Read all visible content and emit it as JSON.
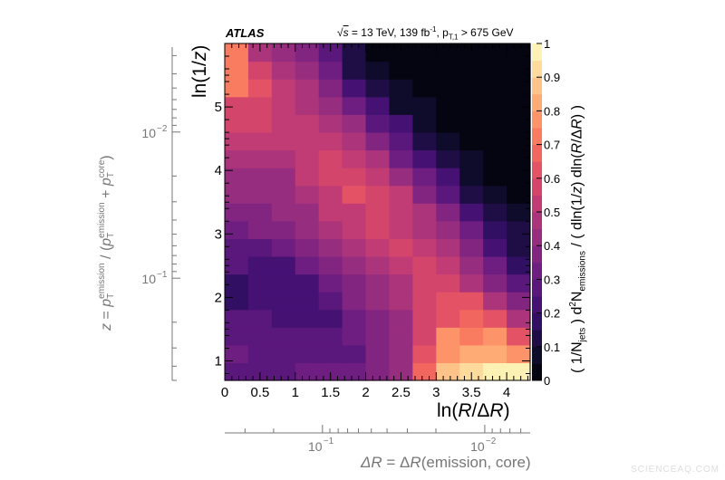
{
  "chart_data": {
    "type": "heatmap",
    "experiment_label": "ATLAS",
    "subtitle": {
      "sqrt": "√",
      "s": "s",
      "rest": " = 13 TeV, 139 fb",
      "fb_exp": "-1",
      "pt_sep": ", p",
      "pt_sub": "T,1",
      "cut": " > 675 GeV"
    },
    "xlabel": {
      "pre": "ln(",
      "R": "R",
      "slash": "/Δ",
      "R2": "R",
      "post": ")"
    },
    "ylabel": {
      "pre": "ln(1/",
      "z": "z",
      "post": ")"
    },
    "secondary_xlabel": {
      "d1": "Δ",
      "R1": "R",
      "mid": " = Δ",
      "R2": "R",
      "post": "(emission, core)"
    },
    "secondary_ylabel": {
      "z": "z",
      "eq": " = ",
      "p1": "p",
      "s1": "T",
      "e1": "emission",
      "div": " / (",
      "p2": "p",
      "s2": "T",
      "e2": "emission",
      "plus": " + ",
      "p3": "p",
      "s3": "T",
      "e3": "core",
      "close": ")"
    },
    "zlabel": {
      "open": "( 1/N",
      "jets": "jets",
      "mid": " ) d",
      "two": "2",
      "N": "N",
      "em": "emissions",
      "rest": " / ( dln(1/",
      "z": "z",
      "r2": ") dln(",
      "R": "R",
      "r3": "/Δ",
      "R2": "R",
      "r4": ") )"
    },
    "xlim": [
      0,
      4.333
    ],
    "ylim": [
      0.693,
      6.0
    ],
    "zlim": [
      0,
      1
    ],
    "x_bin_edges_step": 0.3333,
    "x_ticks": [
      "0",
      "0.5",
      "1",
      "1.5",
      "2",
      "2.5",
      "3",
      "3.5",
      "4"
    ],
    "y_ticks": [
      "1",
      "2",
      "3",
      "4",
      "5"
    ],
    "z_ticks": [
      "0",
      "0.1",
      "0.2",
      "0.3",
      "0.4",
      "0.5",
      "0.6",
      "0.7",
      "0.8",
      "0.9",
      "1"
    ],
    "secondary_x_ticks": [
      {
        "label": "10",
        "exp": "−1",
        "value": 0.1
      },
      {
        "label": "10",
        "exp": "−2",
        "value": 0.01
      }
    ],
    "secondary_y_ticks": [
      {
        "label": "10",
        "exp": "−1",
        "value": 0.1
      },
      {
        "label": "10",
        "exp": "−2",
        "value": 0.01
      }
    ],
    "jet_radius_R": 0.4,
    "colormap": "magma",
    "rows_from_bottom": [
      [
        0.25,
        0.25,
        0.25,
        0.3,
        0.3,
        0.32,
        0.38,
        0.42,
        0.65,
        0.85,
        0.9,
        0.95,
        0.95
      ],
      [
        0.3,
        0.25,
        0.25,
        0.25,
        0.25,
        0.28,
        0.35,
        0.42,
        0.6,
        0.78,
        0.8,
        0.82,
        0.78
      ],
      [
        0.25,
        0.25,
        0.25,
        0.25,
        0.25,
        0.3,
        0.35,
        0.42,
        0.55,
        0.75,
        0.72,
        0.75,
        0.6
      ],
      [
        0.25,
        0.25,
        0.22,
        0.22,
        0.22,
        0.3,
        0.35,
        0.42,
        0.58,
        0.62,
        0.65,
        0.6,
        0.45
      ],
      [
        0.18,
        0.22,
        0.22,
        0.22,
        0.28,
        0.35,
        0.4,
        0.45,
        0.55,
        0.6,
        0.62,
        0.48,
        0.38
      ],
      [
        0.18,
        0.22,
        0.22,
        0.22,
        0.3,
        0.38,
        0.42,
        0.48,
        0.55,
        0.55,
        0.48,
        0.38,
        0.25
      ],
      [
        0.25,
        0.22,
        0.22,
        0.3,
        0.35,
        0.4,
        0.45,
        0.52,
        0.55,
        0.5,
        0.42,
        0.3,
        0.18
      ],
      [
        0.25,
        0.25,
        0.3,
        0.35,
        0.4,
        0.45,
        0.5,
        0.55,
        0.5,
        0.45,
        0.35,
        0.2,
        0.12
      ],
      [
        0.3,
        0.35,
        0.35,
        0.4,
        0.45,
        0.5,
        0.55,
        0.52,
        0.45,
        0.4,
        0.3,
        0.18,
        0.1
      ],
      [
        0.35,
        0.38,
        0.4,
        0.42,
        0.5,
        0.52,
        0.55,
        0.5,
        0.45,
        0.35,
        0.2,
        0.1,
        0.08
      ],
      [
        0.4,
        0.4,
        0.42,
        0.45,
        0.52,
        0.6,
        0.55,
        0.5,
        0.38,
        0.25,
        0.12,
        0.08,
        0.01
      ],
      [
        0.42,
        0.42,
        0.42,
        0.5,
        0.55,
        0.58,
        0.5,
        0.42,
        0.3,
        0.2,
        0.08,
        0.03,
        0.0
      ],
      [
        0.45,
        0.45,
        0.45,
        0.5,
        0.58,
        0.5,
        0.45,
        0.3,
        0.2,
        0.1,
        0.05,
        0.01,
        0.0
      ],
      [
        0.5,
        0.5,
        0.5,
        0.5,
        0.5,
        0.45,
        0.38,
        0.25,
        0.12,
        0.08,
        0.02,
        0.0,
        0.0
      ],
      [
        0.58,
        0.55,
        0.5,
        0.5,
        0.45,
        0.4,
        0.25,
        0.2,
        0.06,
        0.02,
        0.0,
        0.0,
        0.0
      ],
      [
        0.58,
        0.55,
        0.5,
        0.48,
        0.4,
        0.3,
        0.2,
        0.07,
        0.05,
        0.0,
        0.0,
        0.0,
        0.0
      ],
      [
        0.7,
        0.6,
        0.5,
        0.45,
        0.35,
        0.22,
        0.12,
        0.06,
        0.02,
        0.0,
        0.0,
        0.0,
        0.0
      ],
      [
        0.7,
        0.55,
        0.45,
        0.4,
        0.3,
        0.12,
        0.08,
        0.02,
        0.0,
        0.0,
        0.0,
        0.0,
        0.0
      ],
      [
        0.7,
        0.45,
        0.4,
        0.35,
        0.25,
        0.1,
        0.02,
        0.0,
        0.0,
        0.0,
        0.0,
        0.0,
        0.0
      ]
    ]
  },
  "watermark": "SCIENCEAQ.COM"
}
